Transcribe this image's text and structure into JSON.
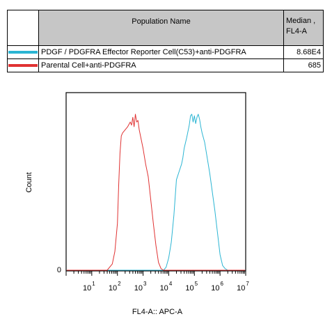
{
  "legend": {
    "header_name": "Population Name",
    "header_median_line1": "Median ,",
    "header_median_line2": "FL4-A",
    "rows": [
      {
        "name": "PDGF / PDGFRA Effector Reporter Cell(C53)+anti-PDGFRA",
        "median": "8.68E4",
        "color": "#2bb5d3"
      },
      {
        "name": "Parental Cell+anti-PDGFRA",
        "median": "685",
        "color": "#e03232"
      }
    ]
  },
  "chart_data": {
    "type": "line",
    "xlabel": "FL4-A:: APC-A",
    "ylabel": "Count",
    "xscale": "log",
    "xlim": [
      1,
      10000000
    ],
    "y_tick_label": "0",
    "grid": false,
    "x_ticks": [
      {
        "base": "10",
        "exp": "1"
      },
      {
        "base": "10",
        "exp": "2"
      },
      {
        "base": "10",
        "exp": "3"
      },
      {
        "base": "10",
        "exp": "4"
      },
      {
        "base": "10",
        "exp": "5"
      },
      {
        "base": "10",
        "exp": "6"
      },
      {
        "base": "10",
        "exp": "7"
      }
    ],
    "series": [
      {
        "name": "PDGF / PDGFRA Effector Reporter Cell(C53)+anti-PDGFRA",
        "color": "#2bb5d3",
        "log10_x": [
          3.8,
          3.9,
          4.0,
          4.1,
          4.2,
          4.3,
          4.4,
          4.5,
          4.55,
          4.6,
          4.7,
          4.8,
          4.85,
          4.9,
          4.95,
          5.0,
          5.05,
          5.1,
          5.15,
          5.2,
          5.25,
          5.3,
          5.4,
          5.5,
          5.6,
          5.7,
          5.8,
          5.9,
          6.0,
          6.1,
          6.2,
          6.3,
          6.5
        ],
        "counts": [
          0,
          2,
          8,
          18,
          35,
          58,
          63,
          68,
          72,
          78,
          85,
          93,
          99,
          100,
          95,
          99,
          94,
          98,
          100,
          97,
          92,
          88,
          82,
          72,
          62,
          50,
          38,
          24,
          10,
          3,
          1,
          0,
          0
        ]
      },
      {
        "name": "Parental Cell+anti-PDGFRA",
        "color": "#e03232",
        "log10_x": [
          1.6,
          1.8,
          1.9,
          2.0,
          2.05,
          2.1,
          2.15,
          2.2,
          2.3,
          2.4,
          2.5,
          2.55,
          2.6,
          2.65,
          2.7,
          2.75,
          2.8,
          2.85,
          2.9,
          3.0,
          3.1,
          3.2,
          3.3,
          3.4,
          3.5,
          3.6,
          3.7,
          3.8
        ],
        "counts": [
          0,
          4,
          12,
          30,
          55,
          75,
          86,
          88,
          90,
          92,
          95,
          93,
          98,
          92,
          100,
          95,
          96,
          90,
          86,
          78,
          68,
          60,
          45,
          30,
          16,
          5,
          1,
          0
        ]
      }
    ]
  }
}
